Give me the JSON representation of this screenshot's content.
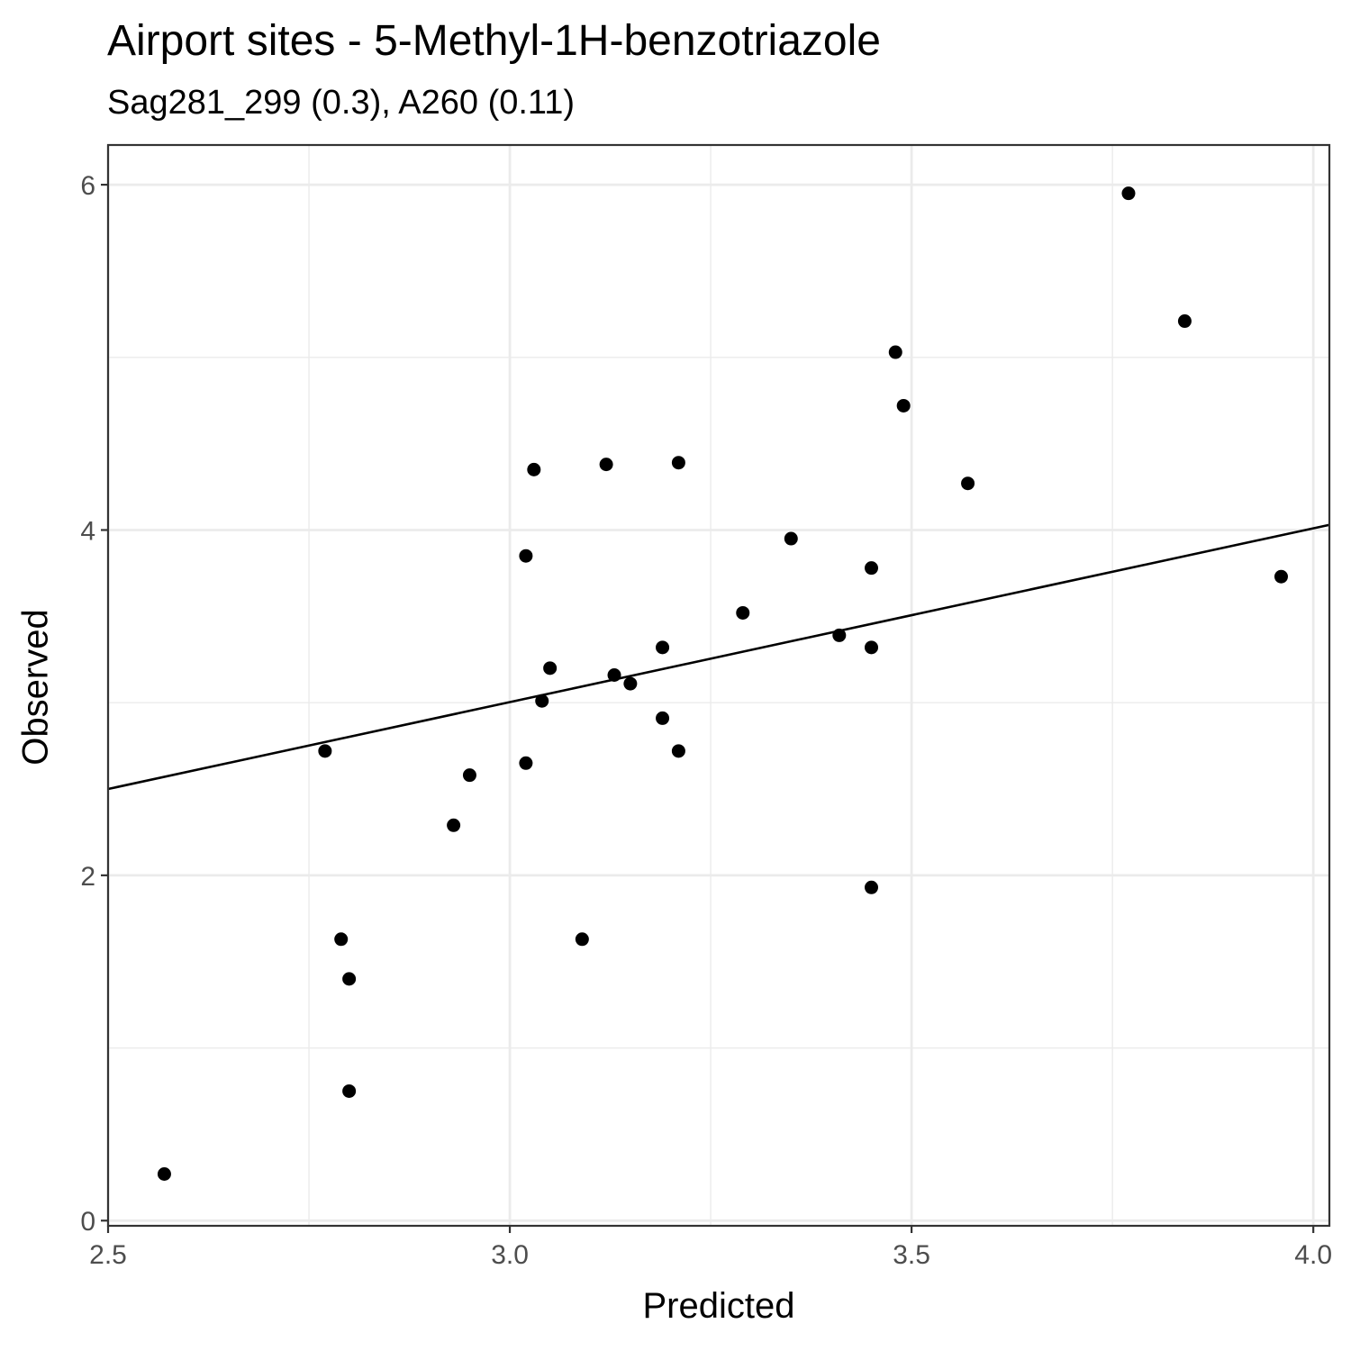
{
  "chart_data": {
    "type": "scatter",
    "title": "Airport sites - 5-Methyl-1H-benzotriazole",
    "subtitle": "Sag281_299 (0.3), A260 (0.11)",
    "xlabel": "Predicted",
    "ylabel": "Observed",
    "xlim": [
      2.5,
      4.02
    ],
    "ylim": [
      -0.03,
      6.23
    ],
    "xticks": [
      2.5,
      3.0,
      3.5,
      4.0
    ],
    "xtick_labels": [
      "2.5",
      "3.0",
      "3.5",
      "4.0"
    ],
    "yticks": [
      0,
      2,
      4,
      6
    ],
    "ytick_labels": [
      "0",
      "2",
      "4",
      "6"
    ],
    "grid": true,
    "points": [
      {
        "x": 2.57,
        "y": 0.27
      },
      {
        "x": 2.77,
        "y": 2.72
      },
      {
        "x": 2.79,
        "y": 1.63
      },
      {
        "x": 2.8,
        "y": 1.4
      },
      {
        "x": 2.8,
        "y": 0.75
      },
      {
        "x": 2.93,
        "y": 2.29
      },
      {
        "x": 2.95,
        "y": 2.58
      },
      {
        "x": 3.02,
        "y": 3.85
      },
      {
        "x": 3.03,
        "y": 4.35
      },
      {
        "x": 3.02,
        "y": 2.65
      },
      {
        "x": 3.04,
        "y": 3.01
      },
      {
        "x": 3.05,
        "y": 3.2
      },
      {
        "x": 3.09,
        "y": 1.63
      },
      {
        "x": 3.12,
        "y": 4.38
      },
      {
        "x": 3.13,
        "y": 3.16
      },
      {
        "x": 3.15,
        "y": 3.11
      },
      {
        "x": 3.19,
        "y": 3.32
      },
      {
        "x": 3.19,
        "y": 2.91
      },
      {
        "x": 3.21,
        "y": 2.72
      },
      {
        "x": 3.21,
        "y": 4.39
      },
      {
        "x": 3.29,
        "y": 3.52
      },
      {
        "x": 3.35,
        "y": 3.95
      },
      {
        "x": 3.41,
        "y": 3.39
      },
      {
        "x": 3.45,
        "y": 3.32
      },
      {
        "x": 3.45,
        "y": 3.78
      },
      {
        "x": 3.45,
        "y": 1.93
      },
      {
        "x": 3.48,
        "y": 5.03
      },
      {
        "x": 3.49,
        "y": 4.72
      },
      {
        "x": 3.57,
        "y": 4.27
      },
      {
        "x": 3.77,
        "y": 5.95
      },
      {
        "x": 3.84,
        "y": 5.21
      },
      {
        "x": 3.96,
        "y": 3.73
      }
    ],
    "fit_line": {
      "x": [
        2.5,
        4.02
      ],
      "y": [
        2.5,
        4.03
      ]
    }
  }
}
